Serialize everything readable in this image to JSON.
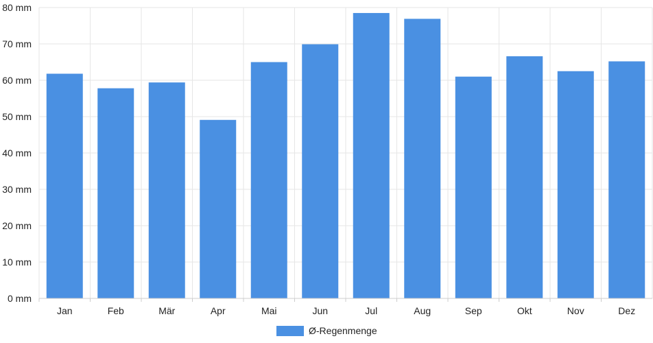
{
  "chart_data": {
    "type": "bar",
    "categories": [
      "Jan",
      "Feb",
      "Mär",
      "Apr",
      "Mai",
      "Jun",
      "Jul",
      "Aug",
      "Sep",
      "Okt",
      "Nov",
      "Dez"
    ],
    "series": [
      {
        "name": "Ø-Regenmenge",
        "values": [
          61.8,
          57.8,
          59.4,
          49.1,
          65.0,
          69.9,
          78.5,
          76.9,
          61.0,
          66.6,
          62.5,
          65.2
        ],
        "color": "#4a90e2"
      }
    ],
    "y_tick_labels": [
      "0 mm",
      "10 mm",
      "20 mm",
      "30 mm",
      "40 mm",
      "50 mm",
      "60 mm",
      "70 mm",
      "80 mm"
    ],
    "ylim": [
      0,
      80
    ],
    "y_tick_step": 10,
    "grid": true,
    "legend_position": "bottom-center",
    "title": "",
    "xlabel": "",
    "ylabel": ""
  }
}
